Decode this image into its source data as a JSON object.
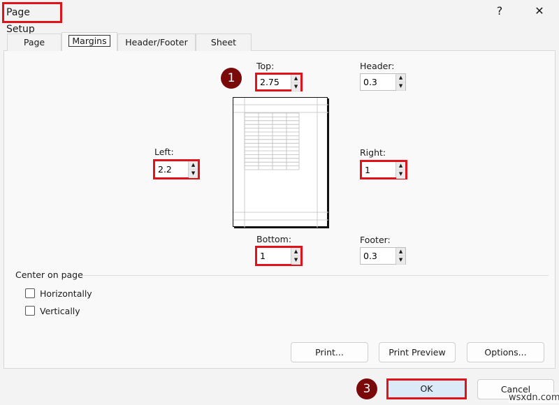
{
  "window": {
    "title": "Page Setup",
    "help": "?",
    "close": "✕"
  },
  "tabs": [
    {
      "label": "Page"
    },
    {
      "label": "Margins",
      "active": true
    },
    {
      "label": "Header/Footer"
    },
    {
      "label": "Sheet"
    }
  ],
  "margins": {
    "top": {
      "label": "Top:",
      "value": "2.75"
    },
    "header": {
      "label": "Header:",
      "value": "0.3"
    },
    "left": {
      "label": "Left:",
      "value": "2.2"
    },
    "right": {
      "label": "Right:",
      "value": "1"
    },
    "bottom": {
      "label": "Bottom:",
      "value": "1"
    },
    "footer": {
      "label": "Footer:",
      "value": "0.3"
    }
  },
  "center_on_page": {
    "label": "Center on page",
    "horizontally": {
      "label": "Horizontally",
      "checked": false
    },
    "vertically": {
      "label": "Vertically",
      "checked": false
    }
  },
  "buttons": {
    "print": "Print...",
    "print_preview": "Print Preview",
    "options": "Options...",
    "ok": "OK",
    "cancel": "Cancel"
  },
  "badges": {
    "step1": "1",
    "step3": "3"
  },
  "watermark": "wsxdn.com",
  "colors": {
    "highlight": "#e0131b",
    "badge": "#7a0a0a",
    "ok_bg": "#dbeaf7"
  }
}
